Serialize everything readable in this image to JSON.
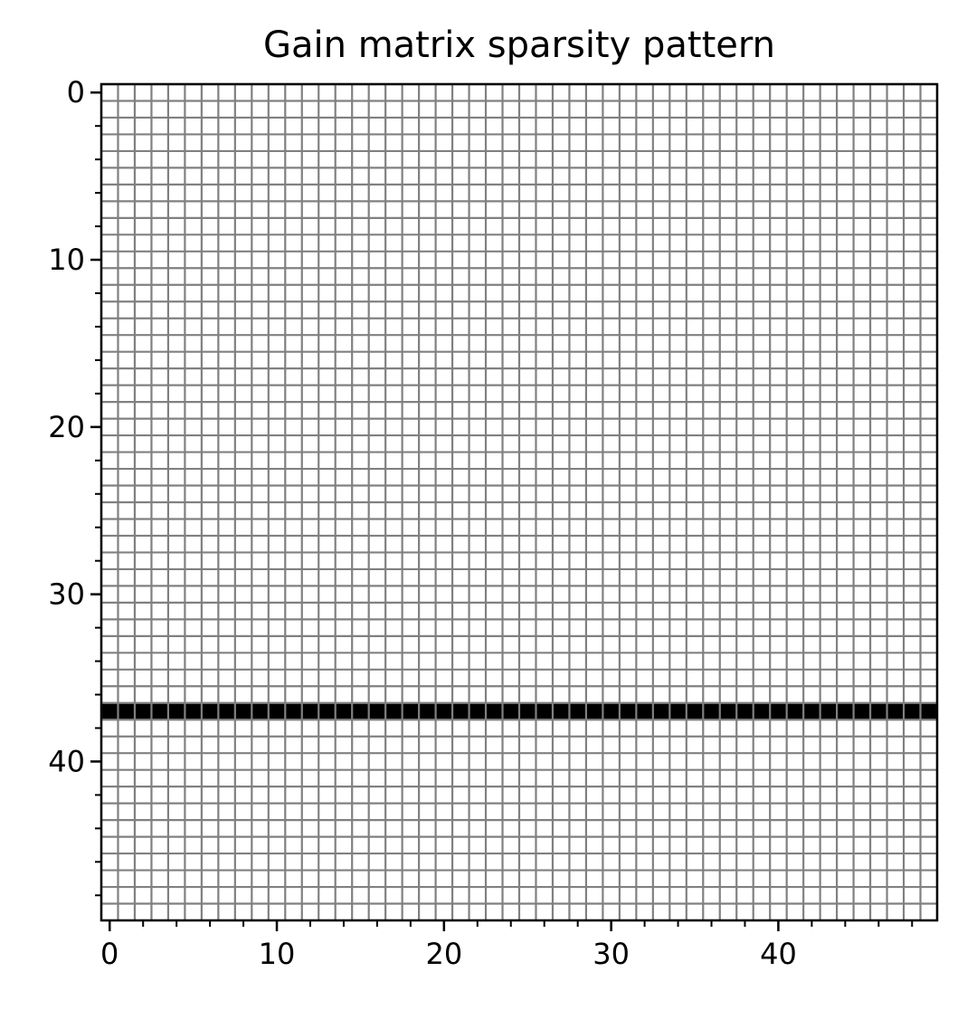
{
  "chart_data": {
    "type": "heatmap",
    "title": "Gain matrix sparsity pattern",
    "xlabel": "",
    "ylabel": "",
    "n_rows": 50,
    "n_cols": 50,
    "xlim": [
      -0.5,
      49.5
    ],
    "ylim": [
      49.5,
      -0.5
    ],
    "x_ticks": [
      0,
      10,
      20,
      30,
      40
    ],
    "y_ticks": [
      0,
      10,
      20,
      30,
      40
    ],
    "x_minor_step": 2,
    "y_minor_step": 2,
    "nonzero_rows": [
      37
    ],
    "nonzero_value": 1,
    "grid": true,
    "colors": {
      "nonzero": "#000000",
      "zero": "#ffffff",
      "grid": "#808080",
      "axes": "#000000"
    }
  }
}
